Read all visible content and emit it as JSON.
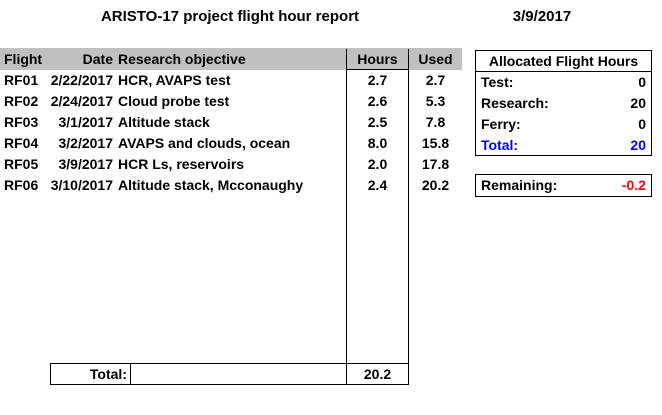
{
  "title": "ARISTO-17 project flight hour report",
  "report_date": "3/9/2017",
  "flight_table": {
    "headers": {
      "flight": "Flight",
      "date": "Date",
      "objective": "Research objective",
      "hours": "Hours",
      "used": "Used"
    },
    "rows": [
      {
        "flight": "RF01",
        "date": "2/22/2017",
        "objective": "HCR, AVAPS test",
        "hours": "2.7",
        "used": "2.7"
      },
      {
        "flight": "RF02",
        "date": "2/24/2017",
        "objective": "Cloud probe test",
        "hours": "2.6",
        "used": "5.3"
      },
      {
        "flight": "RF03",
        "date": "3/1/2017",
        "objective": "Altitude stack",
        "hours": "2.5",
        "used": "7.8"
      },
      {
        "flight": "RF04",
        "date": "3/2/2017",
        "objective": "AVAPS and clouds, ocean",
        "hours": "8.0",
        "used": "15.8"
      },
      {
        "flight": "RF05",
        "date": "3/9/2017",
        "objective": "HCR Ls, reservoirs",
        "hours": "2.0",
        "used": "17.8"
      },
      {
        "flight": "RF06",
        "date": "3/10/2017",
        "objective": "Altitude stack, Mcconaughy",
        "hours": "2.4",
        "used": "20.2"
      }
    ],
    "total_label": "Total:",
    "total_hours": "20.2"
  },
  "allocated": {
    "title": "Allocated Flight Hours",
    "rows": [
      {
        "label": "Test:",
        "value": "0",
        "highlight": false
      },
      {
        "label": "Research:",
        "value": "20",
        "highlight": false
      },
      {
        "label": "Ferry:",
        "value": "0",
        "highlight": false
      },
      {
        "label": "Total:",
        "value": "20",
        "highlight": true
      }
    ]
  },
  "remaining": {
    "label": "Remaining:",
    "value": "-0.2"
  },
  "colors": {
    "header_bg": "#c0c0c0",
    "total_blue": "#0000ff",
    "remaining_red": "#ff0000",
    "text": "#000000",
    "background": "#ffffff"
  }
}
